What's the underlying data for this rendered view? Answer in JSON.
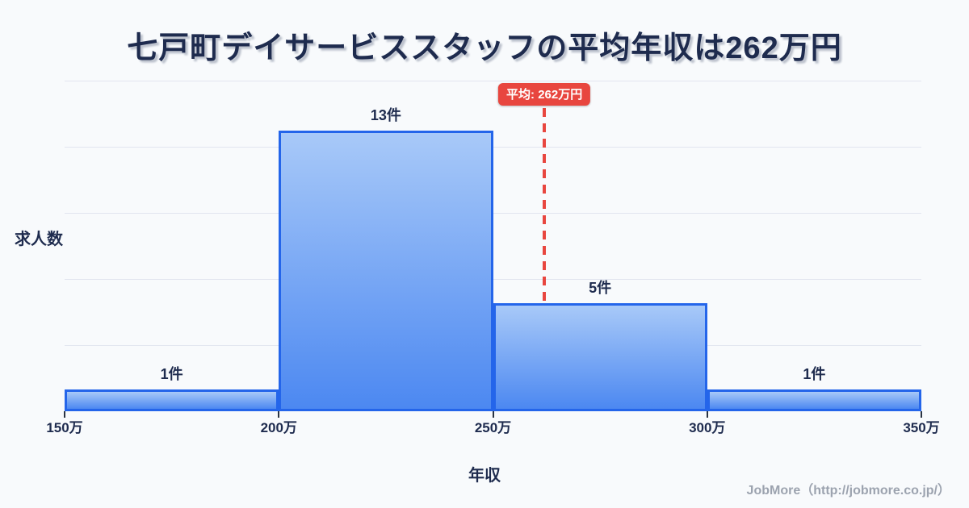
{
  "page": {
    "background": "#f8fafc"
  },
  "chart_data": {
    "type": "bar",
    "title": "七戸町デイサービススタッフの平均年収は262万円",
    "xlabel": "年収",
    "ylabel": "求人数",
    "unit": "件",
    "categories": [
      "150万-200万",
      "200万-250万",
      "250万-300万",
      "300万-350万"
    ],
    "values": [
      1,
      13,
      5,
      1
    ],
    "bar_labels": [
      "1件",
      "13件",
      "5件",
      "1件"
    ],
    "x_tick_labels": [
      "150万",
      "200万",
      "250万",
      "300万",
      "350万"
    ],
    "x_range_man_yen": [
      150,
      350
    ],
    "y_max_items": 13,
    "grid": true,
    "legend": "none",
    "average": {
      "value_man_yen": 262,
      "label": "平均: 262万円"
    }
  },
  "colors": {
    "page_bg": "#f8fafc",
    "bar_fill_top": "#a8c9f8",
    "bar_fill_bottom": "#4c88f1",
    "bar_border": "#2465ea",
    "average_line": "#e8463f",
    "grid_line": "#e2e6f0",
    "text_dark": "#1e2b4e",
    "footer_text": "#9ca3af"
  },
  "footer": {
    "credit": "JobMore（http://jobmore.co.jp/）"
  }
}
